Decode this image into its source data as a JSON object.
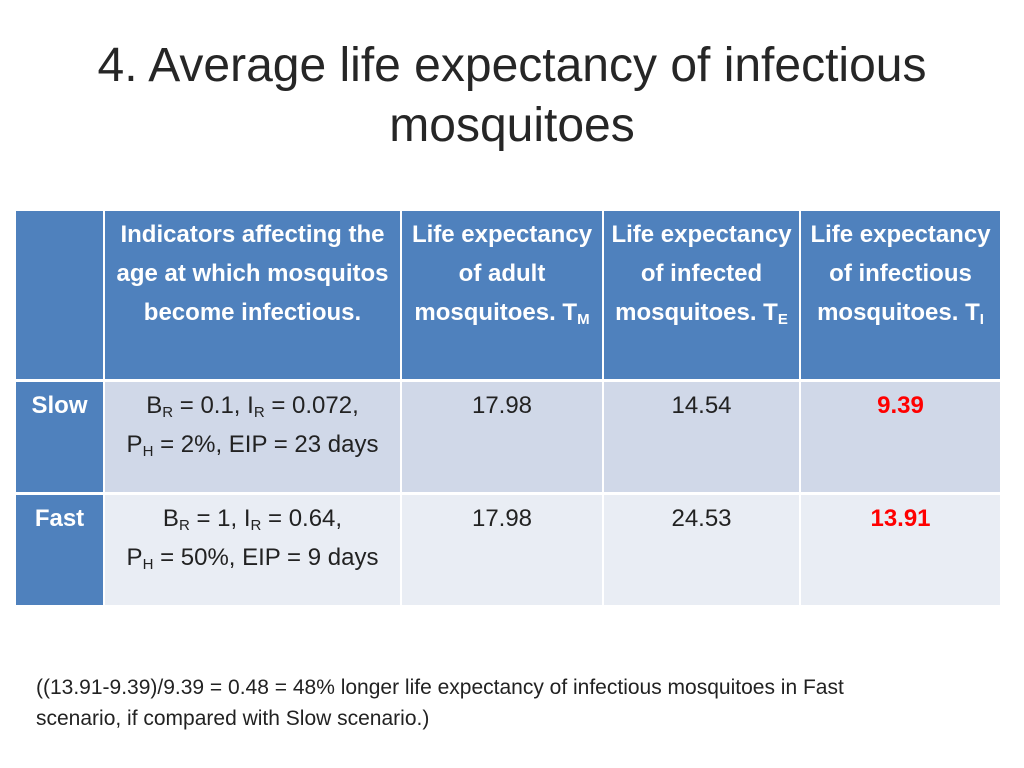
{
  "slide": {
    "title_line1": "4. Average life expectancy of infectious",
    "title_line2": "mosquitoes"
  },
  "table": {
    "header": {
      "col1": [
        "Indicators affecting the",
        "age at which mosquitos",
        "become infectious."
      ],
      "col2": {
        "line1": "Life expectancy",
        "line2": "of adult",
        "line3_text": "mosquitoes. T",
        "line3_sub": "M"
      },
      "col3": {
        "line1": "Life expectancy",
        "line2": "of infected",
        "line3_text": "mosquitoes. T",
        "line3_sub": "E"
      },
      "col4": {
        "line1": "Life expectancy",
        "line2": "of infectious",
        "line3_text": "mosquitoes. T",
        "line3_sub": "I"
      }
    },
    "rows": [
      {
        "label": "Slow",
        "br_sym": "B",
        "br_sub": "R",
        "br_val": " = 0.1, ",
        "ir_sym": "I",
        "ir_sub": "R",
        "ir_val": " = 0.072,",
        "ph_sym": "P",
        "ph_sub": "H",
        "ph_val": " = 2%, EIP = 23 days",
        "tm": "17.98",
        "te": "14.54",
        "ti": "9.39"
      },
      {
        "label": "Fast",
        "br_sym": "B",
        "br_sub": "R",
        "br_val": " = 1, ",
        "ir_sym": "I",
        "ir_sub": "R",
        "ir_val": " = 0.64,",
        "ph_sym": "P",
        "ph_sub": "H",
        "ph_val": " = 50%, EIP = 9 days",
        "tm": "17.98",
        "te": "24.53",
        "ti": "13.91"
      }
    ]
  },
  "footnote": {
    "line1": "((13.91-9.39)/9.39 = 0.48 = 48% longer life expectancy of infectious mosquitoes in Fast",
    "line2": "scenario, if compared with Slow scenario.)"
  },
  "colors": {
    "header_bg": "#4f81bd",
    "row_odd_bg": "#d0d8e8",
    "row_even_bg": "#e9edf4",
    "highlight": "#ff0000"
  }
}
